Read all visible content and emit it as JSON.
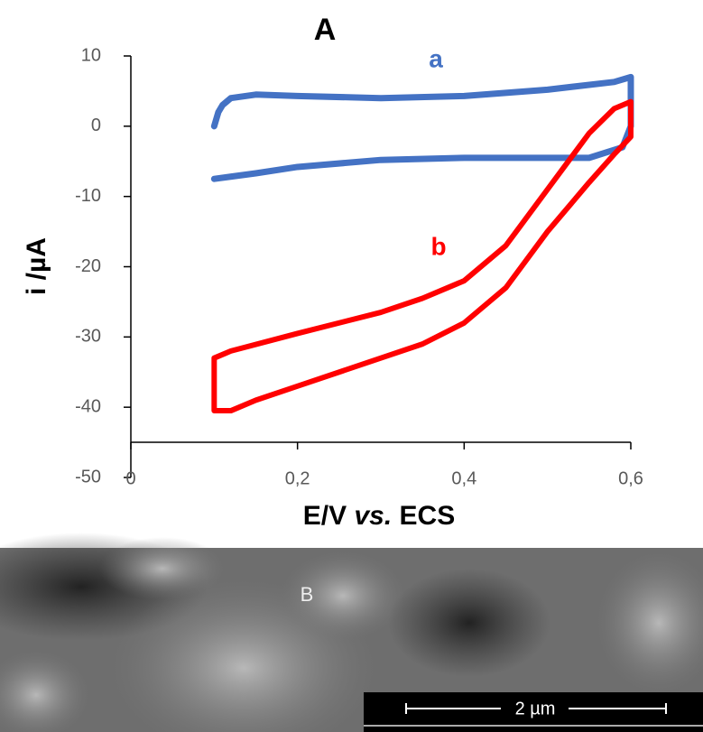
{
  "chart_data": {
    "type": "line",
    "title": "A",
    "xlabel": "E/V vs. ECS",
    "ylabel": "i /µA",
    "xlim": [
      0,
      0.6
    ],
    "ylim": [
      -50,
      10
    ],
    "xticks": [
      0,
      {
        "value": 0.2,
        "label": "0,2"
      },
      {
        "value": 0.4,
        "label": "0,4"
      },
      {
        "value": 0.6,
        "label": "0,6"
      }
    ],
    "yticks": [
      10,
      0,
      -10,
      -20,
      -30,
      -40,
      -50
    ],
    "series": [
      {
        "name": "a",
        "color": "#4472c4",
        "x": [
          0.1,
          0.105,
          0.11,
          0.12,
          0.15,
          0.2,
          0.3,
          0.4,
          0.5,
          0.58,
          0.6,
          0.6,
          0.59,
          0.55,
          0.5,
          0.4,
          0.3,
          0.2,
          0.15,
          0.1
        ],
        "values": [
          0,
          2,
          3,
          4,
          4.5,
          4.3,
          4,
          4.3,
          5.2,
          6.3,
          7,
          0,
          -3,
          -4.5,
          -4.5,
          -4.5,
          -4.8,
          -5.8,
          -6.7,
          -7.5
        ]
      },
      {
        "name": "b",
        "color": "#ff0000",
        "x": [
          0.1,
          0.1,
          0.12,
          0.2,
          0.3,
          0.35,
          0.4,
          0.45,
          0.5,
          0.55,
          0.58,
          0.6,
          0.6,
          0.58,
          0.55,
          0.5,
          0.45,
          0.4,
          0.35,
          0.3,
          0.2,
          0.15,
          0.12,
          0.1
        ],
        "values": [
          -40.5,
          -33,
          -32,
          -29.5,
          -26.5,
          -24.5,
          -22,
          -17,
          -9,
          -1,
          2.5,
          3.5,
          -1.5,
          -4,
          -8,
          -15,
          -23,
          -28,
          -31,
          -33,
          -37,
          -39,
          -40.5,
          -40.5
        ]
      }
    ]
  },
  "panel_b": {
    "label": "B",
    "scale_bar": "2 µm"
  }
}
